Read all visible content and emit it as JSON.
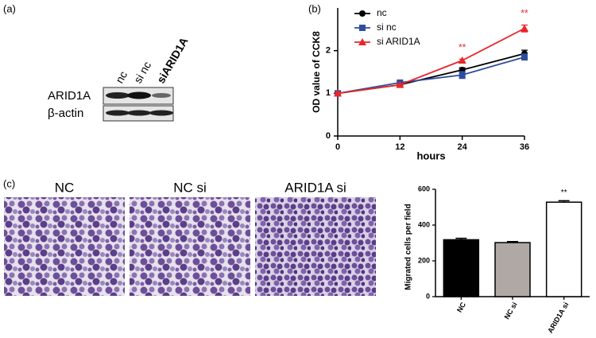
{
  "panels": [
    "(a)",
    "(b)",
    "(c)"
  ],
  "blot": {
    "lanes": [
      "nc",
      "si nc",
      "siARID1A"
    ],
    "rows": [
      "ARID1A",
      "β-actin"
    ]
  },
  "micrographs": [
    "NC",
    "NC si",
    "ARID1A si"
  ],
  "chart_data": [
    {
      "type": "line",
      "xlabel": "hours",
      "ylabel": "OD value of CCK8",
      "x": [
        0,
        12,
        24,
        36
      ],
      "xlim": [
        0,
        36
      ],
      "xticks": [
        0,
        12,
        24,
        36
      ],
      "ylim": [
        0,
        3
      ],
      "yticks": [
        0,
        1,
        2
      ],
      "legend": "upper-left",
      "series": [
        {
          "name": "nc",
          "color": "#000000",
          "marker": "circle",
          "values": [
            1,
            1.2,
            1.55,
            1.93
          ],
          "errors": [
            0.02,
            0.03,
            0.05,
            0.08
          ]
        },
        {
          "name": "si nc",
          "color": "#2e4d9e",
          "marker": "square",
          "values": [
            1,
            1.25,
            1.43,
            1.85
          ],
          "errors": [
            0.02,
            0.03,
            0.08,
            0.07
          ]
        },
        {
          "name": "si ARID1A",
          "color": "#e8262b",
          "marker": "triangle",
          "values": [
            1,
            1.2,
            1.77,
            2.52
          ],
          "errors": [
            0.02,
            0.02,
            0.03,
            0.08
          ]
        }
      ],
      "annotations": [
        {
          "text": "**",
          "x": 24,
          "series": 2
        },
        {
          "text": "**",
          "x": 36,
          "series": 2
        }
      ]
    },
    {
      "type": "bar",
      "ylabel": "Migrated cells per field",
      "categories": [
        "NC",
        "NC si",
        "ARID1A si"
      ],
      "values": [
        318,
        302,
        528
      ],
      "errors": [
        8,
        6,
        8
      ],
      "colors": [
        "#000000",
        "#b0a8a4",
        "#ffffff"
      ],
      "ylim": [
        0,
        600
      ],
      "yticks": [
        0,
        200,
        400,
        600
      ],
      "annotations": [
        {
          "text": "**",
          "category": 2
        }
      ]
    }
  ]
}
